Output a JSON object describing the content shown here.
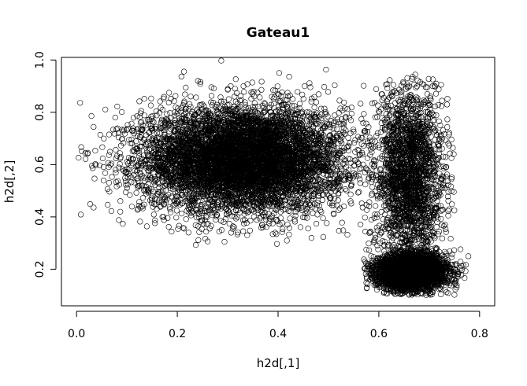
{
  "chart_data": {
    "type": "scatter",
    "title": "Gateau1",
    "xlabel": "h2d[,1]",
    "ylabel": "h2d[,2]",
    "xlim": [
      -0.03,
      0.83
    ],
    "ylim": [
      0.06,
      1.01
    ],
    "x_ticks": [
      0.0,
      0.2,
      0.4,
      0.6,
      0.8
    ],
    "x_tick_labels": [
      "0.0",
      "0.2",
      "0.4",
      "0.6",
      "0.8"
    ],
    "y_ticks": [
      0.2,
      0.4,
      0.6,
      0.8,
      1.0
    ],
    "y_tick_labels": [
      "0.2",
      "0.4",
      "0.6",
      "0.8",
      "1.0"
    ],
    "marker": "open-circle",
    "grid": false,
    "point_color": "#000000",
    "clusters": [
      {
        "center": [
          0.33,
          0.62
        ],
        "spread": [
          0.1,
          0.1
        ],
        "x_range": [
          0.0,
          0.57
        ],
        "y_range": [
          0.28,
          1.0
        ],
        "approx_points": 7000
      },
      {
        "center": [
          0.665,
          0.19
        ],
        "spread": [
          0.035,
          0.035
        ],
        "x_range": [
          0.57,
          0.81
        ],
        "y_range": [
          0.1,
          0.35
        ],
        "approx_points": 3500
      },
      {
        "center": [
          0.66,
          0.55
        ],
        "spread": [
          0.035,
          0.17
        ],
        "x_range": [
          0.56,
          0.75
        ],
        "y_range": [
          0.2,
          0.95
        ],
        "approx_points": 2200
      }
    ]
  }
}
